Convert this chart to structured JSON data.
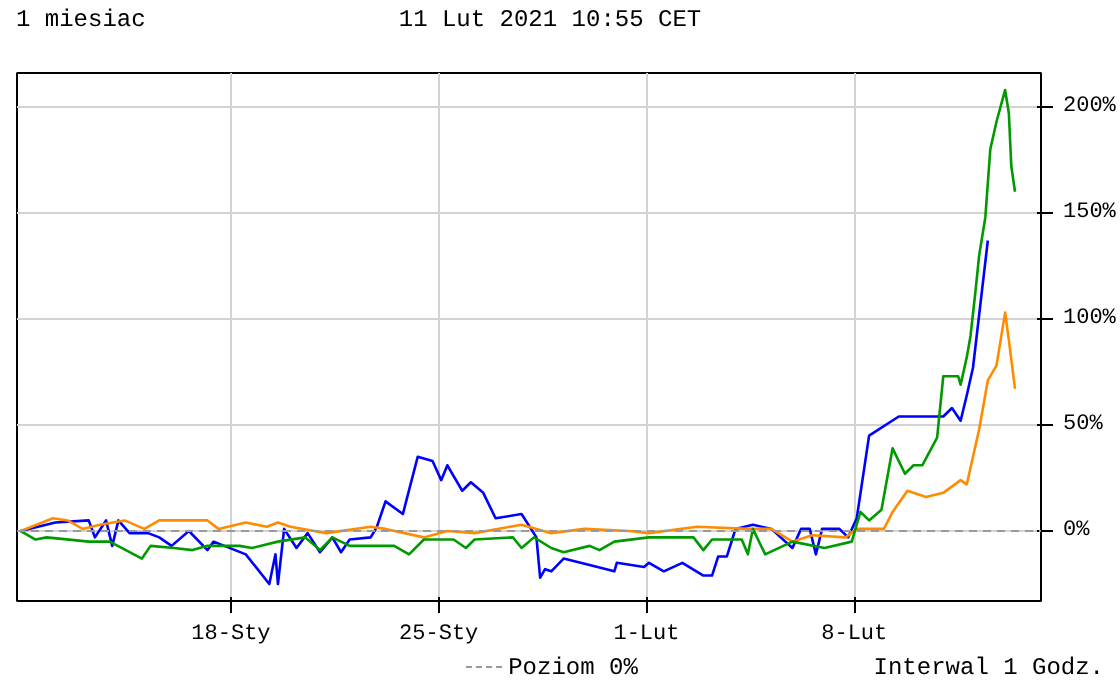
{
  "chart_data": {
    "type": "line",
    "title": "1 miesiac",
    "subtitle": "11 Lut 2021 10:55 CET",
    "annotations": [
      "Interwal 1 Godz."
    ],
    "xlim": [
      "2021-01-10T19:00",
      "2021-02-14T07:00"
    ],
    "xticks": [
      {
        "value": "2021-01-18",
        "label": "18-Sty"
      },
      {
        "value": "2021-01-25",
        "label": "25-Sty"
      },
      {
        "value": "2021-02-01",
        "label": "1-Lut"
      },
      {
        "value": "2021-02-08",
        "label": "8-Lut"
      }
    ],
    "ylim": [
      -33,
      216
    ],
    "yticks": [
      {
        "value": 0,
        "label": "0%"
      },
      {
        "value": 50,
        "label": "50%"
      },
      {
        "value": 100,
        "label": "100%"
      },
      {
        "value": 150,
        "label": "150%"
      },
      {
        "value": 200,
        "label": "200%"
      }
    ],
    "grid": true,
    "line_style": "solid",
    "ref_lines": [
      {
        "axis": "y",
        "value": 0,
        "label": "Poziom 0%",
        "color": "#999999",
        "line_style": "dashed"
      }
    ],
    "series": [
      {
        "color": "#0000ff",
        "x": [
          "2021-01-10T22:00",
          "2021-01-12T02:00",
          "2021-01-13T05:00",
          "2021-01-13T10:00",
          "2021-01-13T19:00",
          "2021-01-14T00:00",
          "2021-01-14T05:00",
          "2021-01-14T14:00",
          "2021-01-15T05:00",
          "2021-01-15T14:00",
          "2021-01-16T00:00",
          "2021-01-16T14:00",
          "2021-01-17T05:00",
          "2021-01-17T10:00",
          "2021-01-18T12:00",
          "2021-01-19T07:00",
          "2021-01-19T12:00",
          "2021-01-19T14:00",
          "2021-01-19T19:00",
          "2021-01-20T05:00",
          "2021-01-20T14:00",
          "2021-01-21T00:00",
          "2021-01-21T10:00",
          "2021-01-21T17:00",
          "2021-01-22T00:00",
          "2021-01-22T17:00",
          "2021-01-22T22:00",
          "2021-01-23T05:00",
          "2021-01-23T19:00",
          "2021-01-24T07:00",
          "2021-01-24T19:00",
          "2021-01-25T02:00",
          "2021-01-25T07:00",
          "2021-01-25T19:00",
          "2021-01-26T02:00",
          "2021-01-26T12:00",
          "2021-01-26T22:00",
          "2021-01-27T19:00",
          "2021-01-28T07:00",
          "2021-01-28T10:00",
          "2021-01-28T14:00",
          "2021-01-28T19:00",
          "2021-01-29T05:00",
          "2021-01-30T02:00",
          "2021-01-30T22:00",
          "2021-01-31T00:00",
          "2021-01-31T22:00",
          "2021-02-01T02:00",
          "2021-02-01T14:00",
          "2021-02-02T05:00",
          "2021-02-02T22:00",
          "2021-02-03T05:00",
          "2021-02-03T10:00",
          "2021-02-03T17:00",
          "2021-02-04T00:00",
          "2021-02-04T14:00",
          "2021-02-05T05:00",
          "2021-02-05T22:00",
          "2021-02-06T05:00",
          "2021-02-06T12:00",
          "2021-02-06T17:00",
          "2021-02-06T22:00",
          "2021-02-07T12:00",
          "2021-02-07T19:00",
          "2021-02-08T02:00",
          "2021-02-08T12:00",
          "2021-02-09T12:00",
          "2021-02-11T00:00",
          "2021-02-11T07:00",
          "2021-02-11T14:00",
          "2021-02-11T19:00",
          "2021-02-12T00:00",
          "2021-02-12T05:00",
          "2021-02-12T12:00"
        ],
        "values": [
          0,
          4,
          5,
          -3,
          5,
          -7,
          5,
          -1,
          -1,
          -3,
          -7,
          0,
          -9,
          -5,
          -11,
          -25,
          -11,
          -25,
          1,
          -8,
          -1,
          -10,
          -3,
          -10,
          -4,
          -3,
          2,
          14,
          8,
          35,
          33,
          24,
          31,
          19,
          23,
          18,
          6,
          8,
          -3,
          -22,
          -18,
          -19,
          -13,
          -16,
          -19,
          -15,
          -17,
          -15,
          -19,
          -15,
          -21,
          -21,
          -12,
          -12,
          1,
          3,
          1,
          -8,
          1,
          1,
          -11,
          1,
          1,
          -3,
          6,
          45,
          54,
          54,
          58,
          52,
          64,
          77,
          102,
          137
        ]
      },
      {
        "color": "#ff8c00",
        "x": [
          "2021-01-10T22:00",
          "2021-01-12T00:00",
          "2021-01-12T12:00",
          "2021-01-13T00:00",
          "2021-01-13T14:00",
          "2021-01-14T10:00",
          "2021-01-15T02:00",
          "2021-01-15T14:00",
          "2021-01-17T05:00",
          "2021-01-17T14:00",
          "2021-01-18T12:00",
          "2021-01-19T05:00",
          "2021-01-19T14:00",
          "2021-01-20T00:00",
          "2021-01-21T05:00",
          "2021-01-22T17:00",
          "2021-01-23T05:00",
          "2021-01-24T12:00",
          "2021-01-25T07:00",
          "2021-01-26T05:00",
          "2021-01-27T19:00",
          "2021-01-28T07:00",
          "2021-01-28T19:00",
          "2021-01-29T22:00",
          "2021-01-31T10:00",
          "2021-02-01T02:00",
          "2021-02-02T17:00",
          "2021-02-04T10:00",
          "2021-02-05T05:00",
          "2021-02-05T22:00",
          "2021-02-06T14:00",
          "2021-02-07T17:00",
          "2021-02-08T02:00",
          "2021-02-09T00:00",
          "2021-02-09T07:00",
          "2021-02-09T19:00",
          "2021-02-10T10:00",
          "2021-02-11T00:00",
          "2021-02-11T14:00",
          "2021-02-11T19:00",
          "2021-02-12T05:00",
          "2021-02-12T12:00",
          "2021-02-12T19:00",
          "2021-02-13T02:00",
          "2021-02-13T05:00",
          "2021-02-13T10:00"
        ],
        "values": [
          0,
          6,
          5,
          1,
          3,
          5,
          1,
          5,
          5,
          1,
          4,
          2,
          4,
          2,
          -1,
          2,
          1,
          -3,
          0,
          -1,
          3,
          1,
          -1,
          1,
          0,
          -1,
          2,
          1,
          1,
          -5,
          -2,
          -3,
          1,
          1,
          9,
          19,
          16,
          18,
          24,
          22,
          48,
          71,
          78,
          103,
          90,
          67
        ]
      },
      {
        "color": "#009900",
        "x": [
          "2021-01-10T22:00",
          "2021-01-11T10:00",
          "2021-01-11T19:00",
          "2021-01-13T05:00",
          "2021-01-13T22:00",
          "2021-01-15T00:00",
          "2021-01-15T07:00",
          "2021-01-16T02:00",
          "2021-01-16T17:00",
          "2021-01-17T05:00",
          "2021-01-18T07:00",
          "2021-01-18T17:00",
          "2021-01-19T14:00",
          "2021-01-20T12:00",
          "2021-01-21T00:00",
          "2021-01-21T10:00",
          "2021-01-22T00:00",
          "2021-01-23T12:00",
          "2021-01-24T00:00",
          "2021-01-24T12:00",
          "2021-01-25T12:00",
          "2021-01-25T22:00",
          "2021-01-26T05:00",
          "2021-01-27T12:00",
          "2021-01-27T19:00",
          "2021-01-28T05:00",
          "2021-01-28T19:00",
          "2021-01-29T05:00",
          "2021-01-30T02:00",
          "2021-01-30T10:00",
          "2021-01-30T22:00",
          "2021-02-01T02:00",
          "2021-02-02T14:00",
          "2021-02-02T22:00",
          "2021-02-03T05:00",
          "2021-02-04T05:00",
          "2021-02-04T10:00",
          "2021-02-04T14:00",
          "2021-02-05T00:00",
          "2021-02-05T22:00",
          "2021-02-07T00:00",
          "2021-02-07T22:00",
          "2021-02-08T05:00",
          "2021-02-08T12:00",
          "2021-02-08T22:00",
          "2021-02-09T07:00",
          "2021-02-09T17:00",
          "2021-02-10T00:00",
          "2021-02-10T07:00",
          "2021-02-10T19:00",
          "2021-02-11T00:00",
          "2021-02-11T12:00",
          "2021-02-11T14:00",
          "2021-02-11T19:00",
          "2021-02-11T22:00",
          "2021-02-12T02:00",
          "2021-02-12T05:00",
          "2021-02-12T10:00",
          "2021-02-12T14:00",
          "2021-02-12T19:00",
          "2021-02-13T02:00",
          "2021-02-13T05:00",
          "2021-02-13T07:00",
          "2021-02-13T10:00"
        ],
        "values": [
          0,
          -4,
          -3,
          -5,
          -5,
          -13,
          -7,
          -8,
          -9,
          -7,
          -7,
          -8,
          -5,
          -3,
          -9,
          -3,
          -7,
          -7,
          -11,
          -4,
          -4,
          -8,
          -4,
          -3,
          -8,
          -3,
          -8,
          -10,
          -7,
          -9,
          -5,
          -3,
          -3,
          -9,
          -4,
          -4,
          -11,
          1,
          -11,
          -5,
          -8,
          -5,
          9,
          5,
          10,
          39,
          27,
          31,
          31,
          44,
          73,
          73,
          69,
          82,
          92,
          113,
          130,
          148,
          180,
          193,
          208,
          197,
          172,
          160
        ]
      }
    ]
  }
}
